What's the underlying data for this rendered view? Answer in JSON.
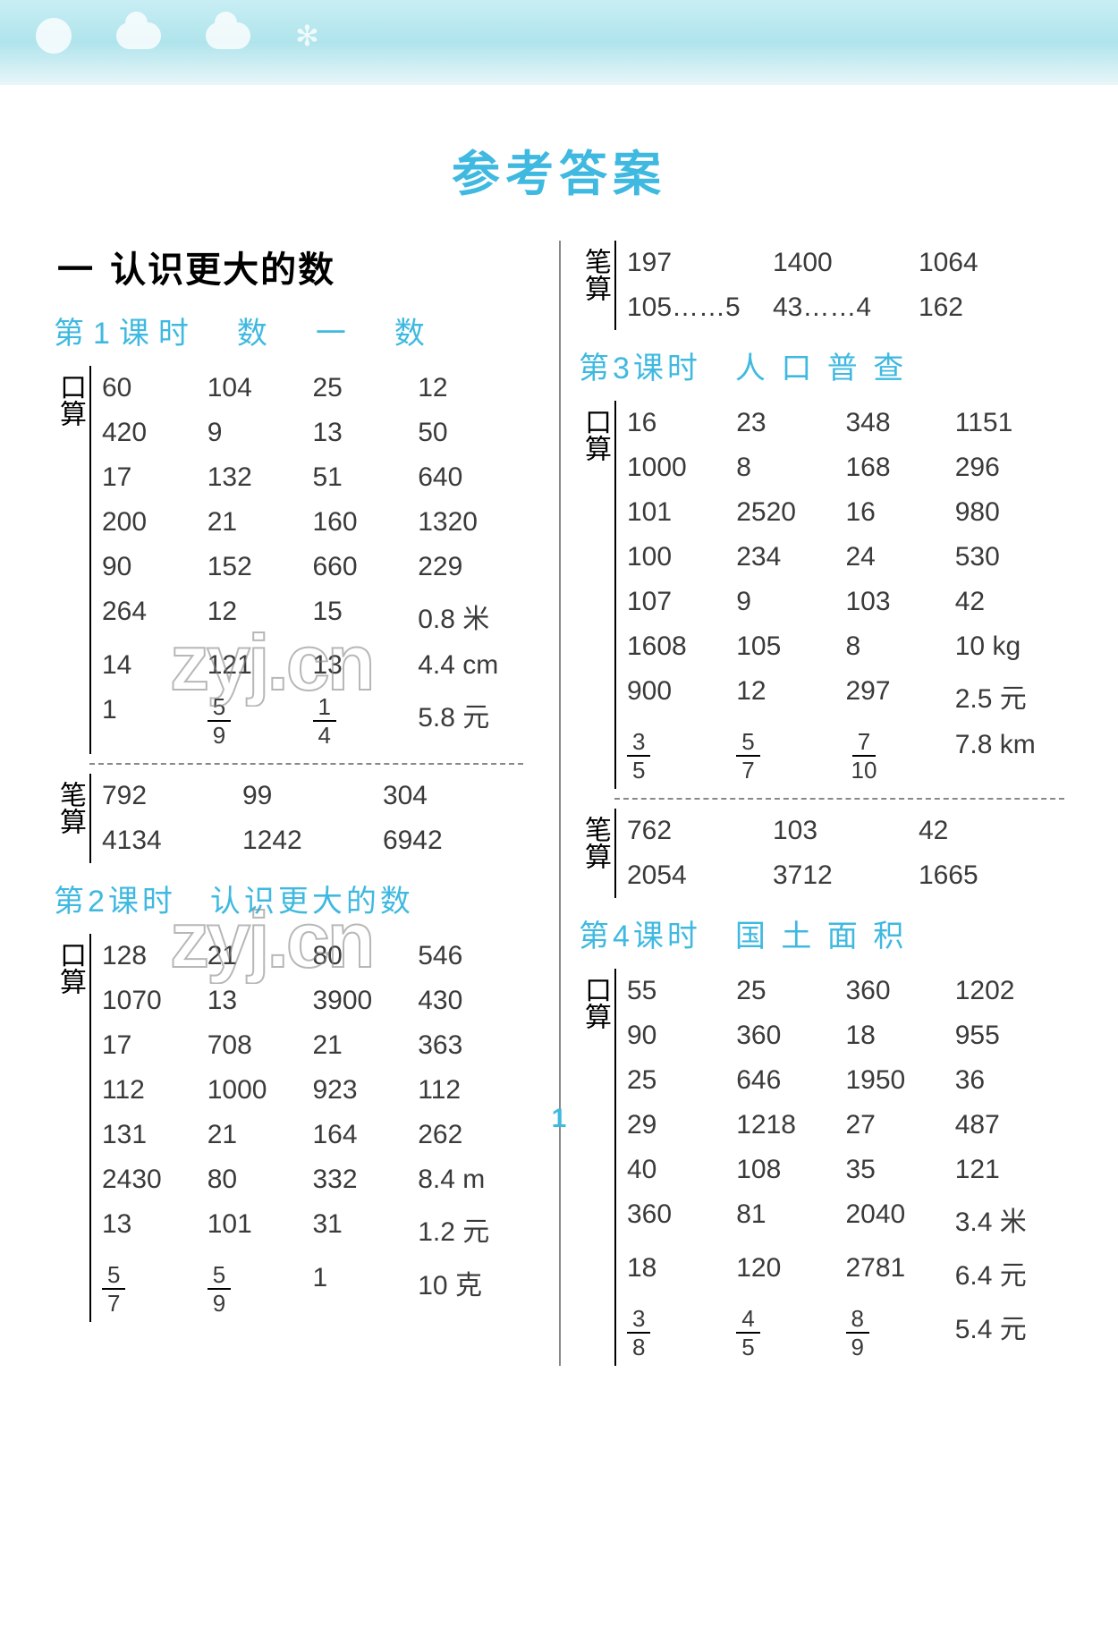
{
  "page": {
    "title": "参考答案",
    "page_number": "1",
    "watermark": "zyj.cn"
  },
  "left": {
    "chapter": {
      "dash": "一",
      "title": "认识更大的数"
    },
    "lesson1": {
      "title": "第1课时　数　一　数",
      "kousuan_label": "口算",
      "kousuan_rows": [
        [
          "60",
          "104",
          "25",
          "12"
        ],
        [
          "420",
          "9",
          "13",
          "50"
        ],
        [
          "17",
          "132",
          "51",
          "640"
        ],
        [
          "200",
          "21",
          "160",
          "1320"
        ],
        [
          "90",
          "152",
          "660",
          "229"
        ],
        [
          "264",
          "12",
          "15",
          "0.8 米"
        ],
        [
          "14",
          "121",
          "13",
          "4.4 cm"
        ]
      ],
      "kousuan_frac_row": {
        "a": "1",
        "b": {
          "n": "5",
          "d": "9"
        },
        "c": {
          "n": "1",
          "d": "4"
        },
        "d": "5.8 元"
      },
      "bisuan_label": "笔算",
      "bisuan_rows": [
        [
          "792",
          "99",
          "304"
        ],
        [
          "4134",
          "1242",
          "6942"
        ]
      ]
    },
    "lesson2": {
      "title": "第2课时　认识更大的数",
      "kousuan_label": "口算",
      "kousuan_rows": [
        [
          "128",
          "21",
          "80",
          "546"
        ],
        [
          "1070",
          "13",
          "3900",
          "430"
        ],
        [
          "17",
          "708",
          "21",
          "363"
        ],
        [
          "112",
          "1000",
          "923",
          "112"
        ],
        [
          "131",
          "21",
          "164",
          "262"
        ],
        [
          "2430",
          "80",
          "332",
          "8.4 m"
        ],
        [
          "13",
          "101",
          "31",
          "1.2 元"
        ]
      ],
      "kousuan_frac_row": {
        "a": {
          "n": "5",
          "d": "7"
        },
        "b": {
          "n": "5",
          "d": "9"
        },
        "c": "1",
        "d": "10 克"
      }
    }
  },
  "right": {
    "top_bisuan_label": "笔算",
    "top_bisuan_rows": [
      [
        "197",
        "1400",
        "1064"
      ],
      [
        "105……5",
        "43……4",
        "162"
      ]
    ],
    "lesson3": {
      "title": "第3课时　人 口 普 查",
      "kousuan_label": "口算",
      "kousuan_rows": [
        [
          "16",
          "23",
          "348",
          "1151"
        ],
        [
          "1000",
          "8",
          "168",
          "296"
        ],
        [
          "101",
          "2520",
          "16",
          "980"
        ],
        [
          "100",
          "234",
          "24",
          "530"
        ],
        [
          "107",
          "9",
          "103",
          "42"
        ],
        [
          "1608",
          "105",
          "8",
          "10 kg"
        ],
        [
          "900",
          "12",
          "297",
          "2.5 元"
        ]
      ],
      "kousuan_frac_row": {
        "a": {
          "n": "3",
          "d": "5"
        },
        "b": {
          "n": "5",
          "d": "7"
        },
        "c": {
          "n": "7",
          "d": "10"
        },
        "d": "7.8 km"
      },
      "bisuan_label": "笔算",
      "bisuan_rows": [
        [
          "762",
          "103",
          "42"
        ],
        [
          "2054",
          "3712",
          "1665"
        ]
      ]
    },
    "lesson4": {
      "title": "第4课时　国 土 面 积",
      "kousuan_label": "口算",
      "kousuan_rows": [
        [
          "55",
          "25",
          "360",
          "1202"
        ],
        [
          "90",
          "360",
          "18",
          "955"
        ],
        [
          "25",
          "646",
          "1950",
          "36"
        ],
        [
          "29",
          "1218",
          "27",
          "487"
        ],
        [
          "40",
          "108",
          "35",
          "121"
        ],
        [
          "360",
          "81",
          "2040",
          "3.4 米"
        ],
        [
          "18",
          "120",
          "2781",
          "6.4 元"
        ]
      ],
      "kousuan_frac_row": {
        "a": {
          "n": "3",
          "d": "8"
        },
        "b": {
          "n": "4",
          "d": "5"
        },
        "c": {
          "n": "8",
          "d": "9"
        },
        "d": "5.4 元"
      }
    }
  }
}
